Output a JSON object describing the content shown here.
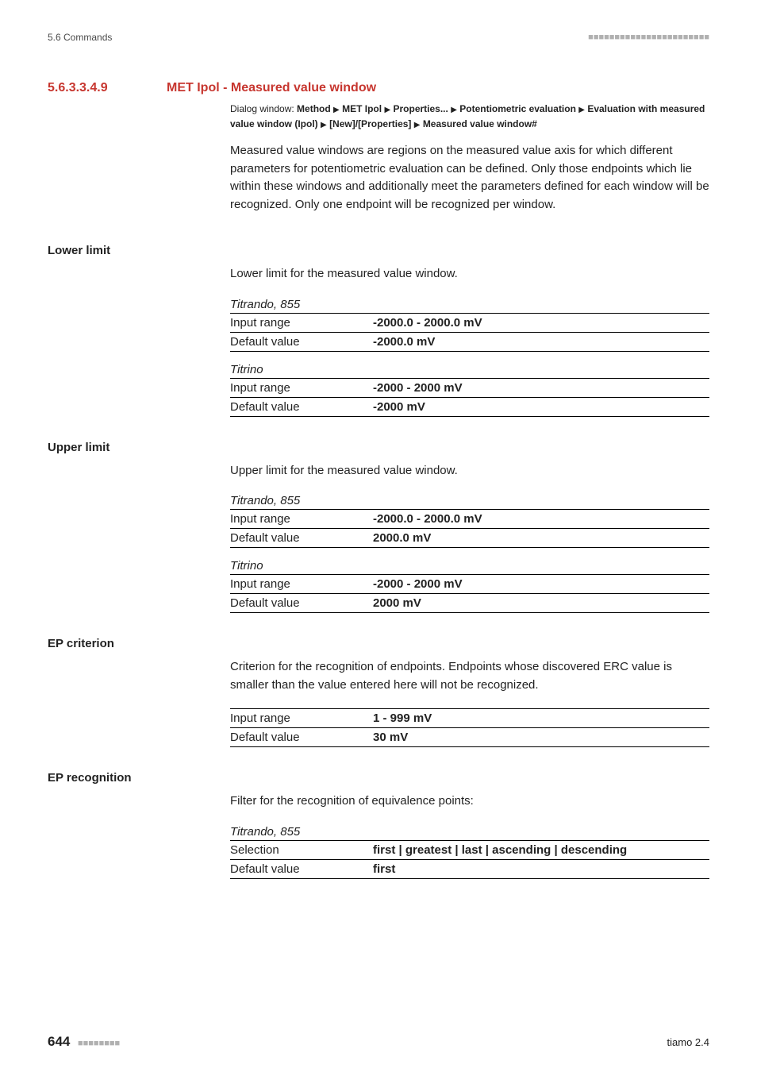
{
  "header": {
    "left": "5.6 Commands",
    "squares": "■■■■■■■■■■■■■■■■■■■■■■■"
  },
  "section": {
    "number": "5.6.3.3.4.9",
    "title": "MET Ipol - Measured value window"
  },
  "breadcrumb": {
    "label": "Dialog window: ",
    "parts": [
      "Method",
      "MET Ipol",
      "Properties...",
      "Potentiometric evaluation",
      "Evaluation with measured value window (Ipol)",
      "[New]/[Properties]",
      "Measured value window#"
    ]
  },
  "intro": "Measured value windows are regions on the measured value axis for which different parameters for potentiometric evaluation can be defined. Only those endpoints which lie within these windows and additionally meet the parameters defined for each window will be recognized. Only one endpoint will be recognized per window.",
  "fields": [
    {
      "label": "Lower limit",
      "desc": "Lower limit for the measured value window.",
      "groups": [
        {
          "device": "Titrando, 855",
          "rows": [
            {
              "k": "Input range",
              "v": "-2000.0 - 2000.0 mV"
            },
            {
              "k": "Default value",
              "v": "-2000.0 mV"
            }
          ]
        },
        {
          "device": "Titrino",
          "rows": [
            {
              "k": "Input range",
              "v": "-2000 - 2000 mV"
            },
            {
              "k": "Default value",
              "v": "-2000 mV"
            }
          ]
        }
      ]
    },
    {
      "label": "Upper limit",
      "desc": "Upper limit for the measured value window.",
      "groups": [
        {
          "device": "Titrando, 855",
          "rows": [
            {
              "k": "Input range",
              "v": "-2000.0 - 2000.0 mV"
            },
            {
              "k": "Default value",
              "v": "2000.0 mV"
            }
          ]
        },
        {
          "device": "Titrino",
          "rows": [
            {
              "k": "Input range",
              "v": "-2000 - 2000 mV"
            },
            {
              "k": "Default value",
              "v": "2000 mV"
            }
          ]
        }
      ]
    },
    {
      "label": "EP criterion",
      "desc": "Criterion for the recognition of endpoints. Endpoints whose discovered ERC value is smaller than the value entered here will not be recognized.",
      "groups": [
        {
          "device": null,
          "rows": [
            {
              "k": "Input range",
              "v": "1 - 999 mV"
            },
            {
              "k": "Default value",
              "v": "30 mV"
            }
          ]
        }
      ]
    },
    {
      "label": "EP recognition",
      "desc": "Filter for the recognition of equivalence points:",
      "groups": [
        {
          "device": "Titrando, 855",
          "rows": [
            {
              "k": "Selection",
              "v": "first | greatest | last | ascending | descending"
            },
            {
              "k": "Default value",
              "v": "first"
            }
          ]
        }
      ]
    }
  ],
  "footer": {
    "page": "644",
    "squares": "■■■■■■■■",
    "product": "tiamo 2.4"
  }
}
